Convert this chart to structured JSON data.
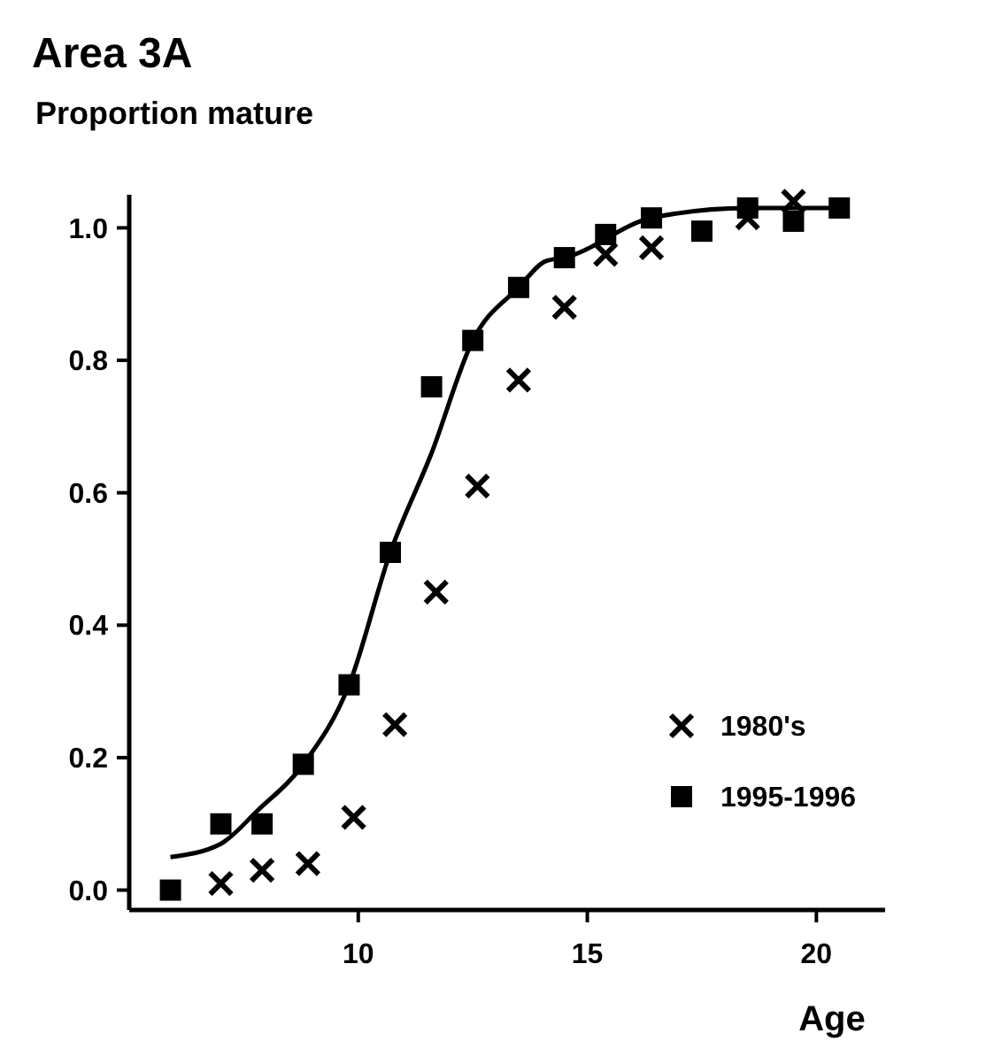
{
  "chart_data": {
    "type": "scatter",
    "title": "Area 3A",
    "ylabel": "Proportion mature",
    "xlabel": "Age",
    "xlim": [
      5,
      21.5
    ],
    "xticks": [
      10,
      15,
      20
    ],
    "ylim": [
      -0.03,
      1.05
    ],
    "yticks": [
      {
        "value": 0,
        "label": "0.0"
      },
      {
        "value": 0.2,
        "label": "0.2"
      },
      {
        "value": 0.4,
        "label": "0.4"
      },
      {
        "value": 0.6,
        "label": "0.6"
      },
      {
        "value": 0.8,
        "label": "0.8"
      },
      {
        "value": 1,
        "label": "1.0"
      }
    ],
    "grid": false,
    "legend": "bottom right",
    "series": [
      {
        "name": "1980's",
        "color": "#000000",
        "marker": "cross",
        "x": [
          7.0,
          7.9,
          8.9,
          9.9,
          10.8,
          11.7,
          12.6,
          13.5,
          14.5,
          15.4,
          16.4,
          18.5,
          19.5
        ],
        "values": [
          0.01,
          0.03,
          0.04,
          0.11,
          0.25,
          0.45,
          0.61,
          0.77,
          0.88,
          0.96,
          0.97,
          1.015,
          1.04
        ]
      },
      {
        "name": "1995-1996",
        "color": "#000000",
        "marker": "square",
        "x": [
          5.9,
          7.0,
          7.9,
          8.8,
          9.8,
          10.7,
          11.6,
          12.5,
          13.5,
          14.5,
          15.4,
          16.4,
          17.5,
          18.5,
          19.5,
          20.5
        ],
        "values": [
          0.0,
          0.1,
          0.1,
          0.19,
          0.31,
          0.51,
          0.76,
          0.83,
          0.91,
          0.955,
          0.99,
          1.015,
          0.995,
          1.03,
          1.01,
          1.03
        ]
      },
      {
        "type": "line",
        "color": "#000000",
        "marker": "none",
        "line_style": "solid",
        "x": [
          5.9,
          7.0,
          7.8,
          8.8,
          9.8,
          10.7,
          11.6,
          12.5,
          13.5,
          14.1,
          14.5,
          16.4,
          18.5,
          20.5
        ],
        "values": [
          0.05,
          0.07,
          0.12,
          0.19,
          0.31,
          0.51,
          0.66,
          0.83,
          0.91,
          0.95,
          0.955,
          1.015,
          1.03,
          1.03
        ]
      }
    ]
  }
}
